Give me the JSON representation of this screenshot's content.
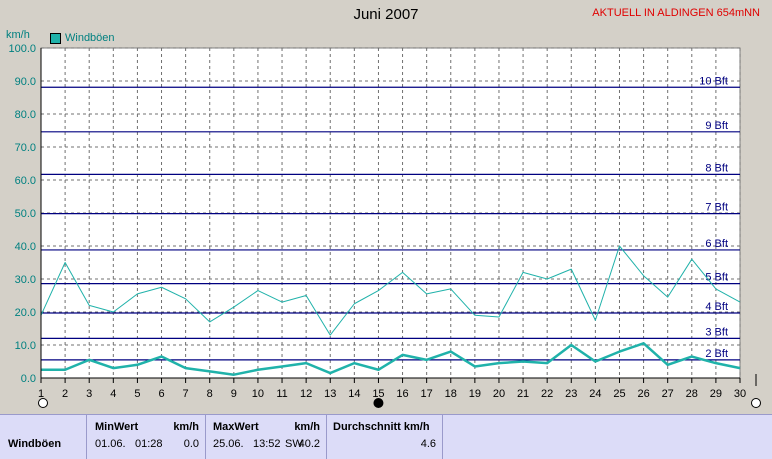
{
  "header": {
    "title": "Juni 2007",
    "station": "AKTUELL IN ALDINGEN 654mNN"
  },
  "chart_data": {
    "type": "line",
    "ylabel": "km/h",
    "ylim": [
      0,
      100
    ],
    "yticks": [
      "0.0",
      "10.0",
      "20.0",
      "30.0",
      "40.0",
      "50.0",
      "60.0",
      "70.0",
      "80.0",
      "90.0",
      "100.0"
    ],
    "x": [
      1,
      2,
      3,
      4,
      5,
      6,
      7,
      8,
      9,
      10,
      11,
      12,
      13,
      14,
      15,
      16,
      17,
      18,
      19,
      20,
      21,
      22,
      23,
      24,
      25,
      26,
      27,
      28,
      29,
      30
    ],
    "xlim": [
      1,
      30
    ],
    "series": [
      {
        "name": "Windböen",
        "color": "#20b2aa",
        "values": [
          19,
          35,
          22,
          20,
          25.5,
          27.5,
          24,
          17,
          21.5,
          26.5,
          23,
          25,
          13,
          22.5,
          26.5,
          32,
          25.5,
          27,
          19,
          18.5,
          32,
          30,
          33,
          17.5,
          40,
          31,
          24.5,
          36,
          27,
          23
        ]
      },
      {
        "name": "",
        "color": "#20b2aa",
        "values": [
          2.5,
          2.5,
          5.5,
          3,
          4,
          6.5,
          3,
          2,
          1,
          2.5,
          3.5,
          4.5,
          1.5,
          4.5,
          2.5,
          7,
          5.5,
          8,
          3.5,
          4.5,
          5,
          4.5,
          10,
          5,
          8,
          10.5,
          4,
          6.5,
          4.5,
          3
        ]
      }
    ],
    "beaufort": [
      {
        "label": "2 Bft",
        "value": 5.5
      },
      {
        "label": "3 Bft",
        "value": 12
      },
      {
        "label": "4 Bft",
        "value": 19.7
      },
      {
        "label": "5 Bft",
        "value": 28.6
      },
      {
        "label": "6 Bft",
        "value": 38.8
      },
      {
        "label": "7 Bft",
        "value": 49.8
      },
      {
        "label": "8 Bft",
        "value": 61.7
      },
      {
        "label": "9 Bft",
        "value": 74.6
      },
      {
        "label": "10 Bft",
        "value": 88.1
      }
    ],
    "grid": true
  },
  "stats": {
    "row_label": "Windböen",
    "min_header": "MinWert",
    "min_unit": "km/h",
    "min_date": "01.06.",
    "min_time": "01:28",
    "min_value": "0.0",
    "max_header": "MaxWert",
    "max_unit": "km/h",
    "max_date": "25.06.",
    "max_time": "13:52",
    "max_dir": "SW",
    "max_value": "40.2",
    "avg_header": "Durchschnitt km/h",
    "avg_value": "4.6"
  },
  "colors": {
    "series": "#20b2aa",
    "beaufort_line": "#000080",
    "station_text": "#e00000",
    "axis_text": "#008080"
  }
}
